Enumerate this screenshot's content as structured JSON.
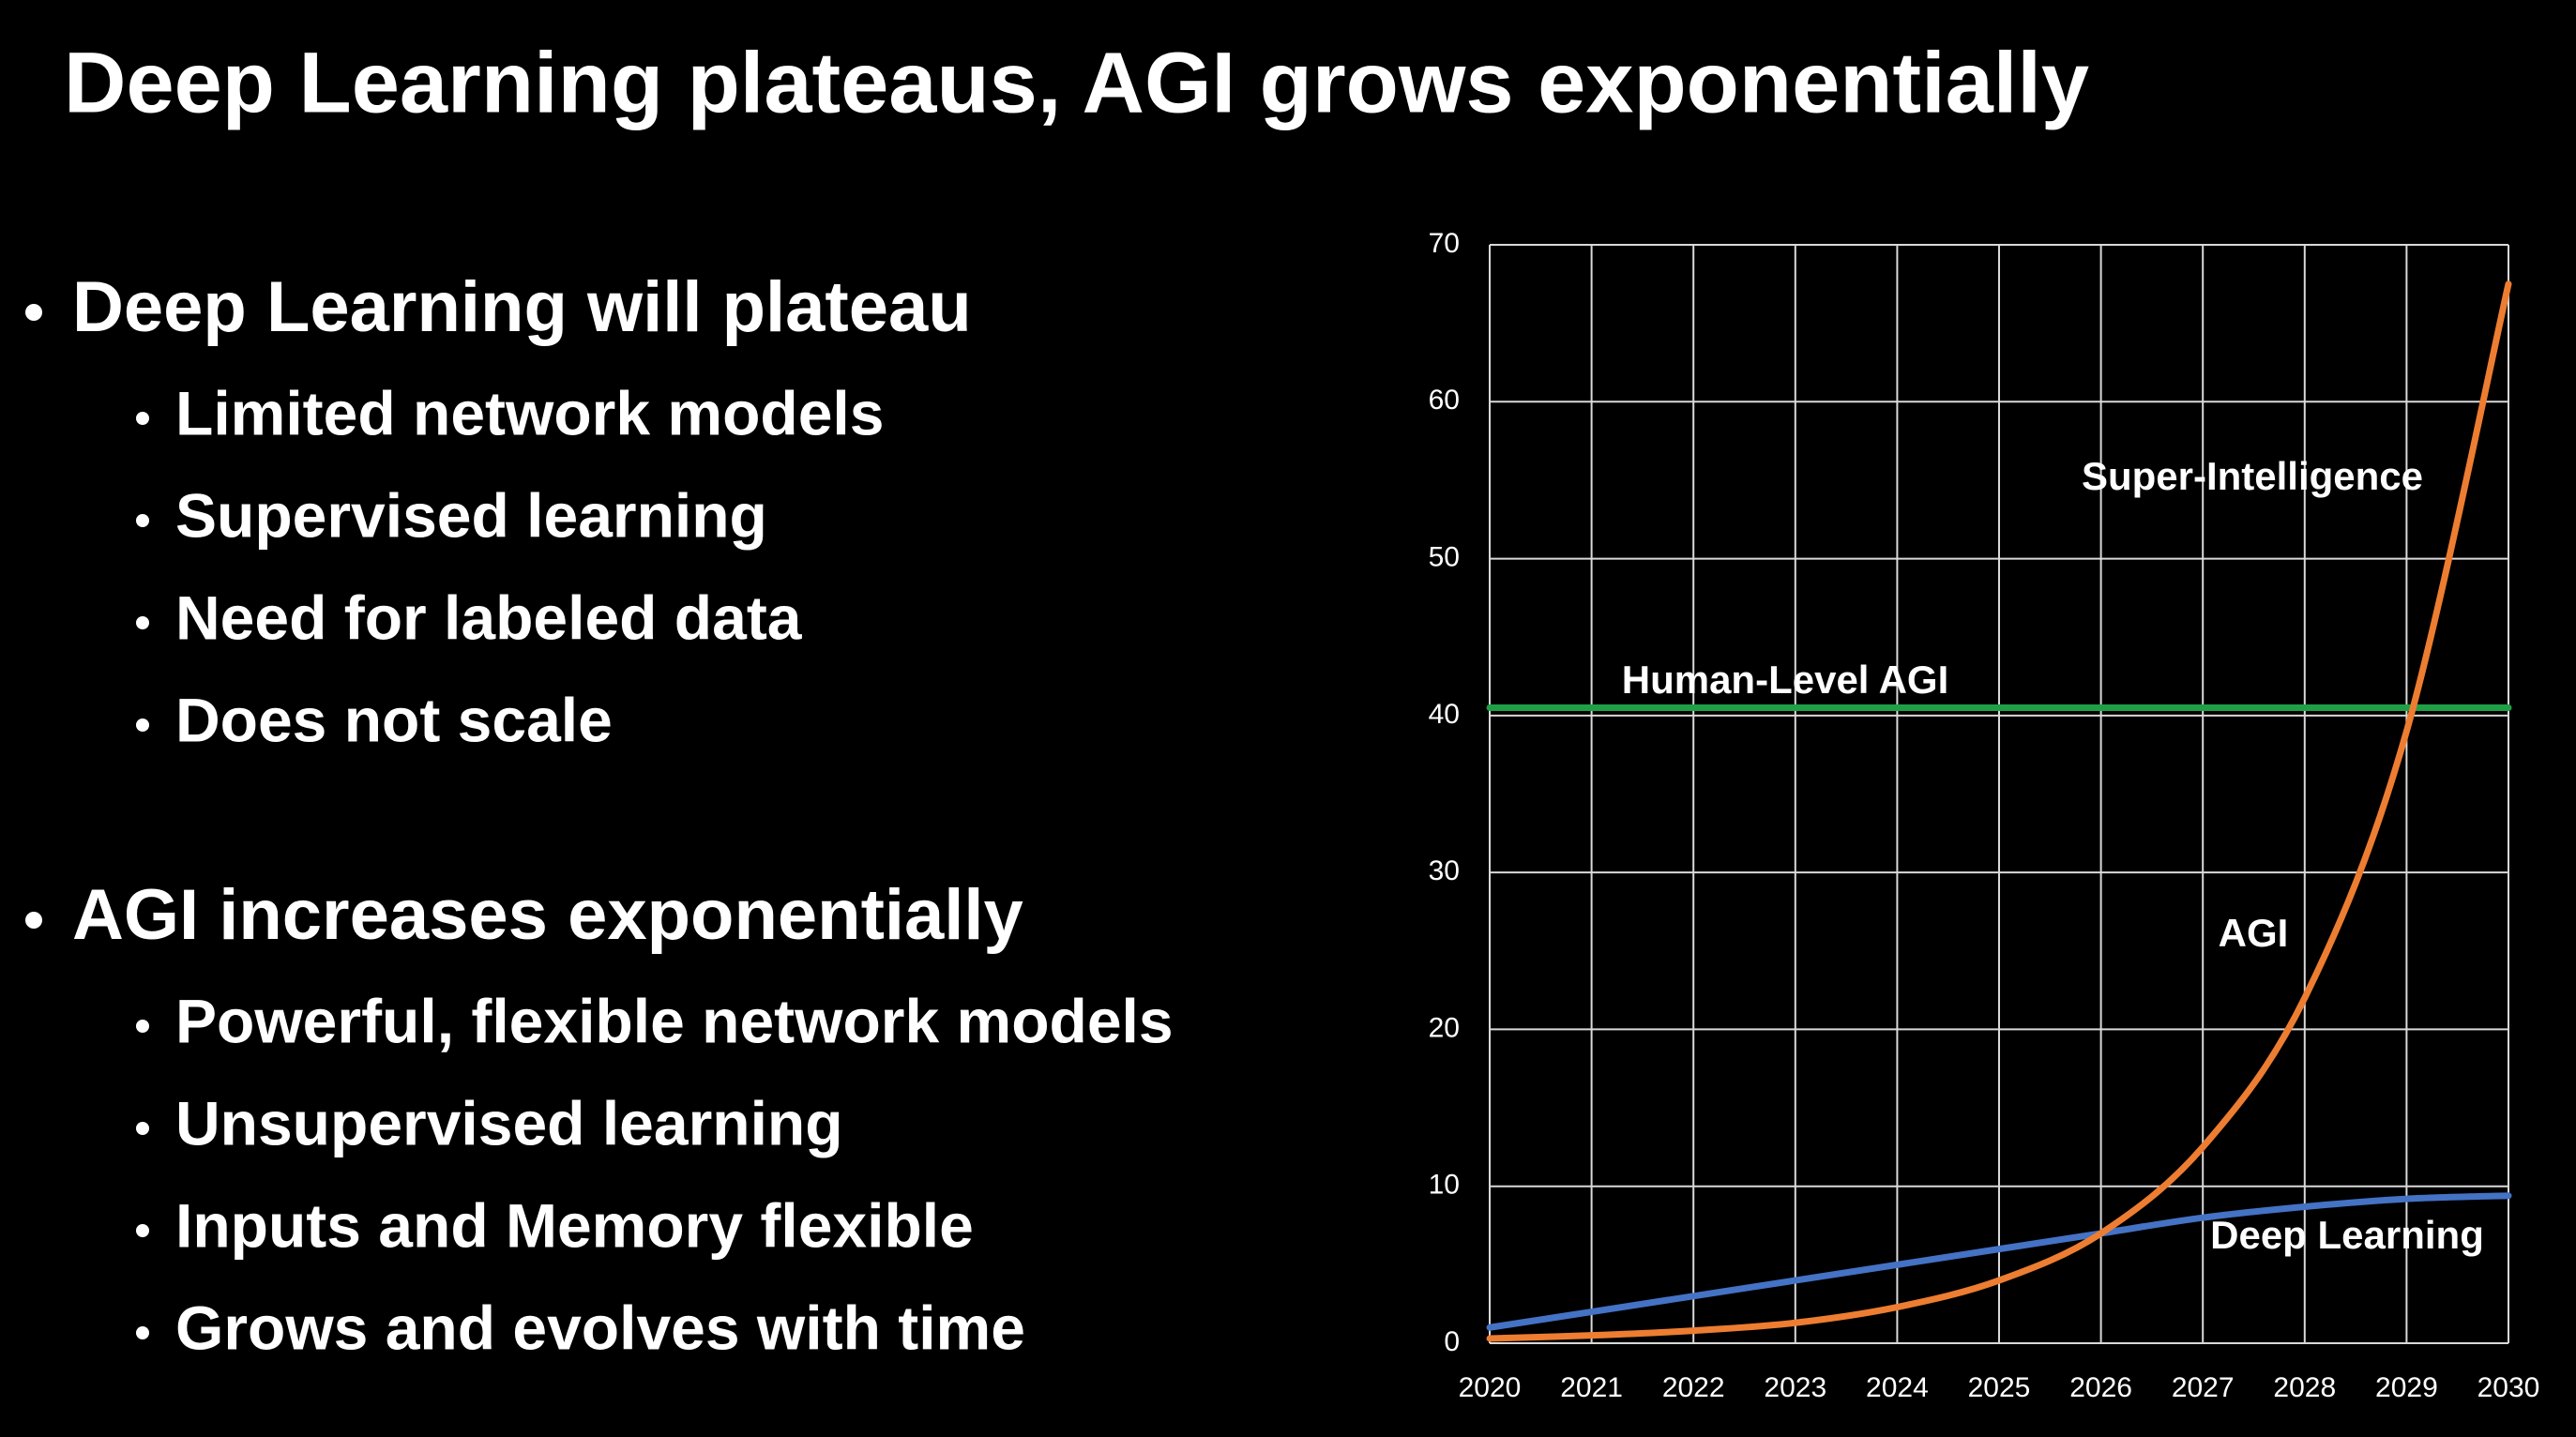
{
  "header": {
    "title": "Deep Learning plateaus, AGI grows exponentially"
  },
  "bullets": [
    {
      "text": "Deep Learning will plateau",
      "items": [
        "Limited network models",
        "Supervised learning",
        "Need for labeled data",
        "Does not scale"
      ]
    },
    {
      "text": "AGI increases exponentially",
      "items": [
        "Powerful, flexible network models",
        "Unsupervised learning",
        "Inputs and Memory flexible",
        "Grows and evolves with time"
      ]
    }
  ],
  "chart_data": {
    "type": "line",
    "x": [
      2020,
      2021,
      2022,
      2023,
      2024,
      2025,
      2026,
      2027,
      2028,
      2029,
      2030
    ],
    "series": [
      {
        "name": "AGI",
        "color": "#ed7d31",
        "values": [
          0.3,
          0.5,
          0.8,
          1.3,
          2.3,
          4,
          7,
          12.5,
          22,
          39,
          67.5
        ]
      },
      {
        "name": "Deep Learning",
        "color": "#4472c4",
        "values": [
          1,
          2,
          3,
          4,
          5,
          6,
          7,
          8,
          8.7,
          9.2,
          9.4
        ]
      },
      {
        "name": "Human-Level AGI",
        "color": "#1fa047",
        "values": [
          40.5,
          40.5,
          40.5,
          40.5,
          40.5,
          40.5,
          40.5,
          40.5,
          40.5,
          40.5,
          40.5
        ]
      }
    ],
    "annotations": [
      "Super-Intelligence"
    ],
    "xlim": [
      2020,
      2030
    ],
    "xticks": [
      2020,
      2021,
      2022,
      2023,
      2024,
      2025,
      2026,
      2027,
      2028,
      2029,
      2030
    ],
    "ylim": [
      0,
      70
    ],
    "yticks": [
      0,
      10,
      20,
      30,
      40,
      50,
      60,
      70
    ],
    "grid": true
  }
}
